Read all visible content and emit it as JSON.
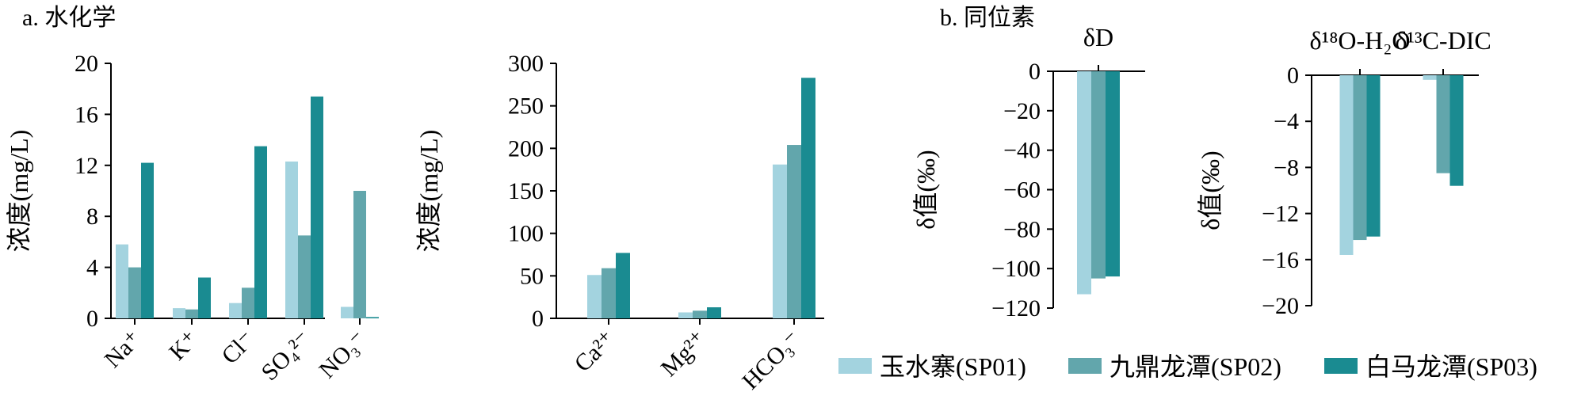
{
  "panel_labels": {
    "a": "a. 水化学",
    "b": "b. 同位素"
  },
  "legend": [
    {
      "name": "玉水寨(SP01)",
      "color": "#a3d3df"
    },
    {
      "name": "九鼎龙潭(SP02)",
      "color": "#62a6ac"
    },
    {
      "name": "白马龙潭(SP03)",
      "color": "#1a8b91"
    }
  ],
  "chart_data": [
    {
      "type": "bar",
      "panel": "a",
      "ylabel": "浓度(mg/L)",
      "ylim": [
        0,
        20
      ],
      "yticks": [
        0,
        4,
        8,
        12,
        16,
        20
      ],
      "categories": [
        "Na⁺",
        "K⁺",
        "Cl⁻",
        "SO₄²⁻",
        "NO₃⁻"
      ],
      "series": [
        {
          "name": "玉水寨(SP01)",
          "values": [
            5.8,
            0.8,
            1.2,
            12.3,
            0.9
          ]
        },
        {
          "name": "九鼎龙潭(SP02)",
          "values": [
            4.0,
            0.7,
            2.4,
            6.5,
            10.0
          ]
        },
        {
          "name": "白马龙潭(SP03)",
          "values": [
            12.2,
            3.2,
            13.5,
            17.4,
            0.1
          ]
        }
      ]
    },
    {
      "type": "bar",
      "panel": "a",
      "ylabel": "浓度(mg/L)",
      "ylim": [
        0,
        300
      ],
      "yticks": [
        0,
        50,
        100,
        150,
        200,
        250,
        300
      ],
      "categories": [
        "Ca²⁺",
        "Mg²⁺",
        "HCO₃⁻"
      ],
      "series": [
        {
          "name": "玉水寨(SP01)",
          "values": [
            51,
            7,
            181
          ]
        },
        {
          "name": "九鼎龙潭(SP02)",
          "values": [
            59,
            9,
            204
          ]
        },
        {
          "name": "白马龙潭(SP03)",
          "values": [
            77,
            13,
            283
          ]
        }
      ]
    },
    {
      "type": "bar",
      "panel": "b",
      "ylabel": "δ值(‰)",
      "ylim": [
        -120,
        0
      ],
      "yticks": [
        0,
        -20,
        -40,
        -60,
        -80,
        -100,
        -120
      ],
      "categories": [
        "δD"
      ],
      "series": [
        {
          "name": "玉水寨(SP01)",
          "values": [
            -113
          ]
        },
        {
          "name": "九鼎龙潭(SP02)",
          "values": [
            -105
          ]
        },
        {
          "name": "白马龙潭(SP03)",
          "values": [
            -104
          ]
        }
      ]
    },
    {
      "type": "bar",
      "panel": "b",
      "ylabel": "δ值(‰)",
      "ylim": [
        -20,
        0
      ],
      "yticks": [
        0,
        -4,
        -8,
        -12,
        -16,
        -20
      ],
      "categories": [
        "δ¹⁸O-H₂O",
        "δ¹³C-DIC"
      ],
      "series": [
        {
          "name": "玉水寨(SP01)",
          "values": [
            -15.6,
            -0.4
          ]
        },
        {
          "name": "九鼎龙潭(SP02)",
          "values": [
            -14.3,
            -8.5
          ]
        },
        {
          "name": "白马龙潭(SP03)",
          "values": [
            -14.0,
            -9.6
          ]
        }
      ]
    }
  ]
}
